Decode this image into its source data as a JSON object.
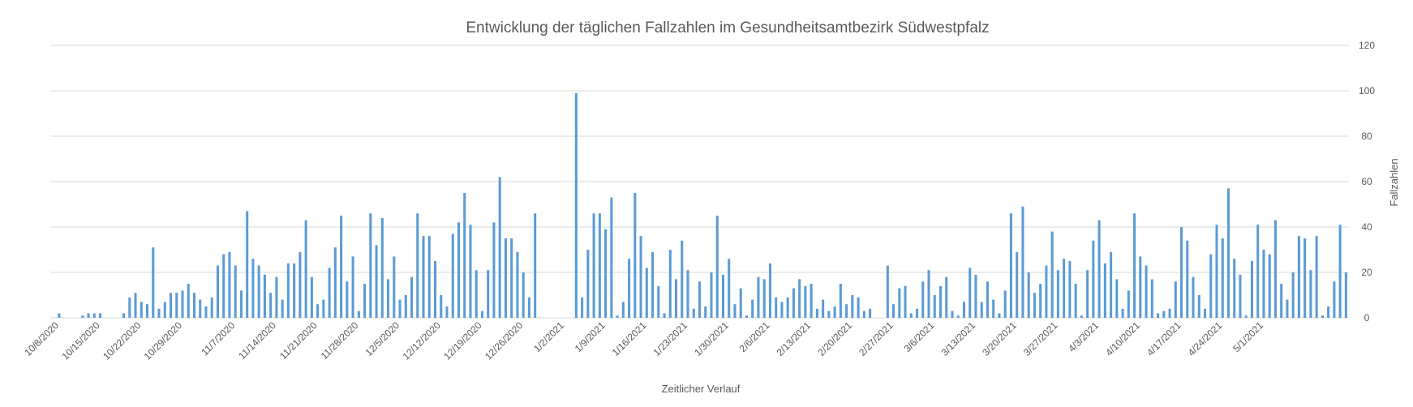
{
  "chart_data": {
    "type": "bar",
    "title": "Entwicklung der täglichen Fallzahlen im Gesundheitsamtbezirk Südwestpfalz",
    "xlabel": "Zeitlicher Verlauf",
    "ylabel": "Fallzahlen",
    "y_axis_side": "right",
    "ylim": [
      0,
      120
    ],
    "y_ticks": [
      0,
      20,
      40,
      60,
      80,
      100,
      120
    ],
    "grid": true,
    "legend": "none",
    "color": "#5b9bd5",
    "x_start": "2020-10-7",
    "x_tick_labels": [
      "10/8/2020",
      "10/15/2020",
      "10/22/2020",
      "10/29/2020",
      "11/7/2020",
      "11/14/2020",
      "11/21/2020",
      "11/28/2020",
      "12/5/2020",
      "12/12/2020",
      "12/19/2020",
      "12/26/2020",
      "1/2/2021",
      "1/9/2021",
      "1/16/2021",
      "1/23/2021",
      "1/30/2021",
      "2/6/2021",
      "2/13/2021",
      "2/20/2021",
      "2/27/2021",
      "3/6/2021",
      "3/13/2021",
      "3/20/2021",
      "3/27/2021",
      "4/3/2021",
      "4/10/2021",
      "4/17/2021",
      "4/24/2021",
      "5/1/2021"
    ],
    "values": [
      0,
      2,
      0,
      0,
      0,
      1,
      2,
      2,
      2,
      0,
      0,
      0,
      2,
      9,
      11,
      7,
      6,
      31,
      4,
      7,
      11,
      11,
      12,
      15,
      11,
      8,
      5,
      9,
      23,
      28,
      29,
      23,
      12,
      47,
      26,
      23,
      19,
      11,
      18,
      8,
      24,
      24,
      29,
      43,
      18,
      6,
      8,
      22,
      31,
      45,
      16,
      27,
      3,
      15,
      46,
      32,
      44,
      17,
      27,
      8,
      10,
      18,
      46,
      36,
      36,
      25,
      10,
      5,
      37,
      42,
      55,
      41,
      21,
      3,
      21,
      42,
      62,
      35,
      35,
      29,
      20,
      9,
      46,
      0,
      0,
      0,
      0,
      0,
      0,
      99,
      9,
      30,
      46,
      46,
      39,
      53,
      1,
      7,
      26,
      55,
      36,
      22,
      29,
      14,
      2,
      30,
      17,
      34,
      21,
      4,
      16,
      5,
      20,
      45,
      19,
      26,
      6,
      13,
      1,
      8,
      18,
      17,
      24,
      9,
      7,
      9,
      13,
      17,
      14,
      15,
      4,
      8,
      3,
      5,
      15,
      6,
      10,
      9,
      3,
      4,
      0,
      0,
      23,
      6,
      13,
      14,
      2,
      4,
      16,
      21,
      10,
      14,
      18,
      3,
      1,
      7,
      22,
      19,
      7,
      16,
      8,
      2,
      12,
      46,
      29,
      49,
      20,
      11,
      15,
      23,
      38,
      21,
      26,
      25,
      15,
      1,
      21,
      34,
      43,
      24,
      29,
      17,
      4,
      12,
      46,
      27,
      23,
      17,
      2,
      3,
      4,
      16,
      40,
      34,
      18,
      10,
      4,
      28,
      41,
      35,
      57,
      26,
      19,
      1,
      25,
      41,
      30,
      28,
      43,
      15,
      8,
      20,
      36,
      35,
      21,
      36,
      1,
      5,
      16,
      41,
      20
    ]
  }
}
